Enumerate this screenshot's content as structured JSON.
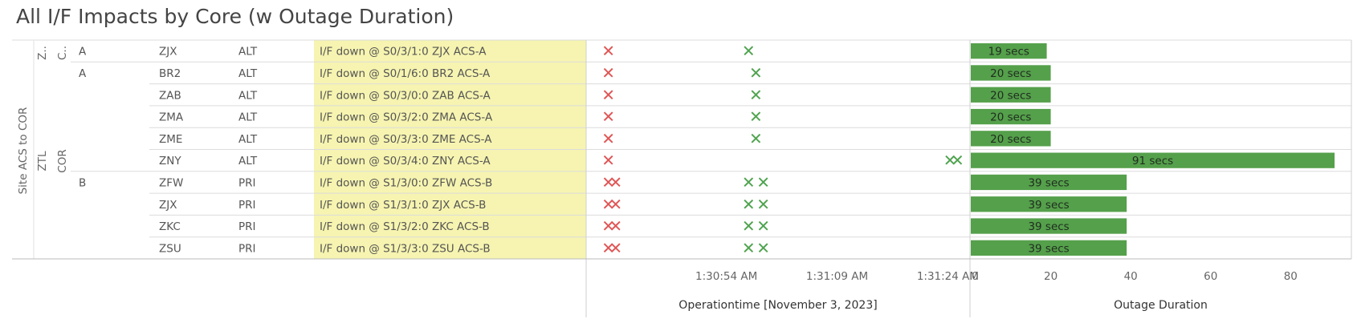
{
  "title": "All I/F Impacts by Core (w Outage Duration)",
  "colors": {
    "down_mark": "#e05555",
    "up_mark": "#4fa34f",
    "bar": "#55a04b",
    "highlight": "#f6f4b0",
    "gridline": "#dcdcdc"
  },
  "headers": {
    "site": "Site ACS to COR",
    "core_first": "Z..",
    "core_rest": "ZTL",
    "type_first": "C..",
    "type_rest": "COR"
  },
  "rows": [
    {
      "side": "A",
      "site": "ZJX",
      "role": "ALT",
      "event": "I/F down @ S0/3/1:0 ZJX ACS-A"
    },
    {
      "side": "A",
      "site": "BR2",
      "role": "ALT",
      "event": "I/F down @ S0/1/6:0 BR2 ACS-A"
    },
    {
      "side": "",
      "site": "ZAB",
      "role": "ALT",
      "event": "I/F down @ S0/3/0:0 ZAB ACS-A"
    },
    {
      "side": "",
      "site": "ZMA",
      "role": "ALT",
      "event": "I/F down @ S0/3/2:0 ZMA ACS-A"
    },
    {
      "side": "",
      "site": "ZME",
      "role": "ALT",
      "event": "I/F down @ S0/3/3:0 ZME ACS-A"
    },
    {
      "side": "",
      "site": "ZNY",
      "role": "ALT",
      "event": "I/F down @ S0/3/4:0 ZNY ACS-A"
    },
    {
      "side": "B",
      "site": "ZFW",
      "role": "PRI",
      "event": "I/F down @ S1/3/0:0 ZFW ACS-B"
    },
    {
      "side": "",
      "site": "ZJX",
      "role": "PRI",
      "event": "I/F down @ S1/3/1:0 ZJX ACS-B"
    },
    {
      "side": "",
      "site": "ZKC",
      "role": "PRI",
      "event": "I/F down @ S1/3/2:0 ZKC ACS-B"
    },
    {
      "side": "",
      "site": "ZSU",
      "role": "PRI",
      "event": "I/F down @ S1/3/3:0 ZSU ACS-B"
    }
  ],
  "chart_data": [
    {
      "type": "scatter",
      "xlabel": "Operationtime [November 3, 2023]",
      "x_ticks": [
        "1:30:54 AM",
        "1:31:09 AM",
        "1:31:24 AM"
      ],
      "x_tick_seconds": [
        54,
        69,
        84
      ],
      "xlim_seconds": [
        35,
        87
      ],
      "x_unit_note": "seconds after 1:30:00 AM",
      "series": [
        {
          "name": "down",
          "marker": "x",
          "points_seconds": [
            [
              38
            ],
            [
              38
            ],
            [
              38
            ],
            [
              38
            ],
            [
              38
            ],
            [
              38
            ],
            [
              38,
              39
            ],
            [
              38,
              39
            ],
            [
              38,
              39
            ],
            [
              38,
              39
            ]
          ]
        },
        {
          "name": "up",
          "marker": "x",
          "points_seconds": [
            [
              57
            ],
            [
              58
            ],
            [
              58
            ],
            [
              58
            ],
            [
              58
            ],
            [
              84.3,
              85.3
            ],
            [
              57,
              59
            ],
            [
              57,
              59
            ],
            [
              57,
              59
            ],
            [
              57,
              59
            ]
          ]
        }
      ]
    },
    {
      "type": "bar",
      "orientation": "horizontal",
      "xlabel": "Outage Duration",
      "values": [
        19,
        20,
        20,
        20,
        20,
        91,
        39,
        39,
        39,
        39
      ],
      "data_labels": [
        "19 secs",
        "20 secs",
        "20 secs",
        "20 secs",
        "20 secs",
        "91 secs",
        "39 secs",
        "39 secs",
        "39 secs",
        "39 secs"
      ],
      "x_ticks": [
        "0",
        "20",
        "40",
        "60",
        "80"
      ],
      "xlim": [
        0,
        95
      ]
    }
  ]
}
